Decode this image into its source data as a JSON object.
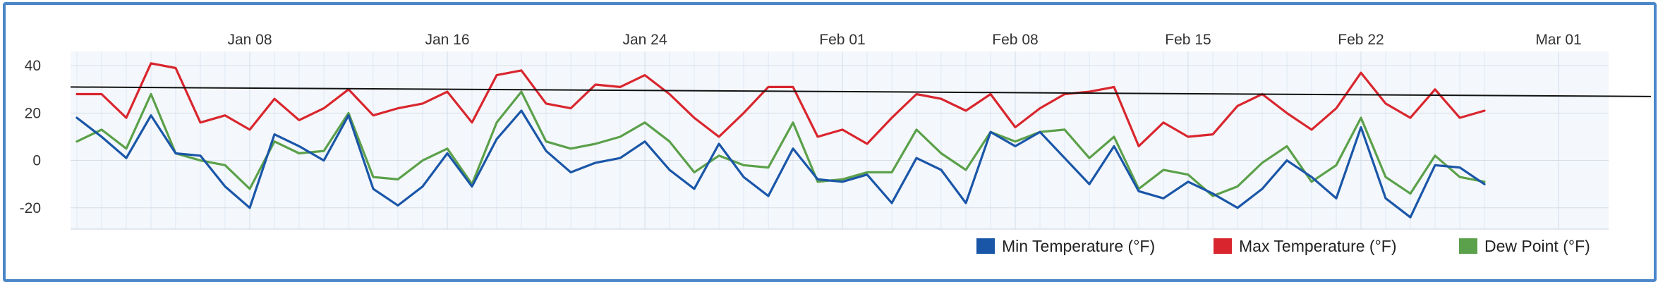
{
  "chart_data": {
    "type": "line",
    "title": "",
    "xlabel": "",
    "ylabel": "",
    "x_start": "2024-01-01",
    "x_end": "2024-02-28",
    "x_ticks": [
      "Jan 08",
      "Jan 16",
      "Jan 24",
      "Feb 01",
      "Feb 08",
      "Feb 15",
      "Feb 22",
      "Mar 01"
    ],
    "x_tick_dates": [
      "2024-01-08",
      "2024-01-16",
      "2024-01-24",
      "2024-02-01",
      "2024-02-08",
      "2024-02-15",
      "2024-02-22",
      "2024-03-01"
    ],
    "y_ticks": [
      -20,
      0,
      20,
      40
    ],
    "ylim": [
      -29,
      46
    ],
    "grid": true,
    "legend_position": "bottom-right",
    "series": [
      {
        "name": "Min Temperature (°F)",
        "color": "#1a56a8",
        "values": [
          18,
          10,
          1,
          19,
          3,
          2,
          -11,
          -20,
          11,
          6,
          0,
          19,
          -12,
          -19,
          -11,
          3,
          -11,
          9,
          21,
          4,
          -5,
          -1,
          1,
          8,
          -4,
          -12,
          7,
          -7,
          -15,
          5,
          -8,
          -9,
          -6,
          -18,
          1,
          -4,
          -18,
          12,
          6,
          12,
          1,
          -10,
          6,
          -13,
          -16,
          -9,
          -14,
          -20,
          -12,
          0,
          -7,
          -16,
          14,
          -16,
          -24,
          -2,
          -3,
          -10
        ]
      },
      {
        "name": "Max Temperature (°F)",
        "color": "#d9262e",
        "values": [
          28,
          28,
          18,
          41,
          39,
          16,
          19,
          13,
          26,
          17,
          22,
          30,
          19,
          22,
          24,
          29,
          16,
          36,
          38,
          24,
          22,
          32,
          31,
          36,
          28,
          18,
          10,
          20,
          31,
          31,
          10,
          13,
          7,
          18,
          28,
          26,
          21,
          28,
          14,
          22,
          28,
          29,
          31,
          6,
          16,
          10,
          11,
          23,
          28,
          20,
          13,
          22,
          37,
          24,
          18,
          30,
          18,
          21
        ]
      },
      {
        "name": "Dew Point (°F)",
        "color": "#5ba04a",
        "values": [
          8,
          13,
          5,
          28,
          3,
          0,
          -2,
          -12,
          8,
          3,
          4,
          20,
          -7,
          -8,
          0,
          5,
          -10,
          16,
          29,
          8,
          5,
          7,
          10,
          16,
          8,
          -5,
          2,
          -2,
          -3,
          16,
          -9,
          -8,
          -5,
          -5,
          13,
          3,
          -4,
          12,
          8,
          12,
          13,
          1,
          10,
          -12,
          -4,
          -6,
          -15,
          -11,
          -1,
          6,
          -9,
          -2,
          18,
          -7,
          -14,
          2,
          -7,
          -9
        ]
      }
    ],
    "trend_line": {
      "color": "#111111",
      "start": 31,
      "end": 27
    }
  }
}
